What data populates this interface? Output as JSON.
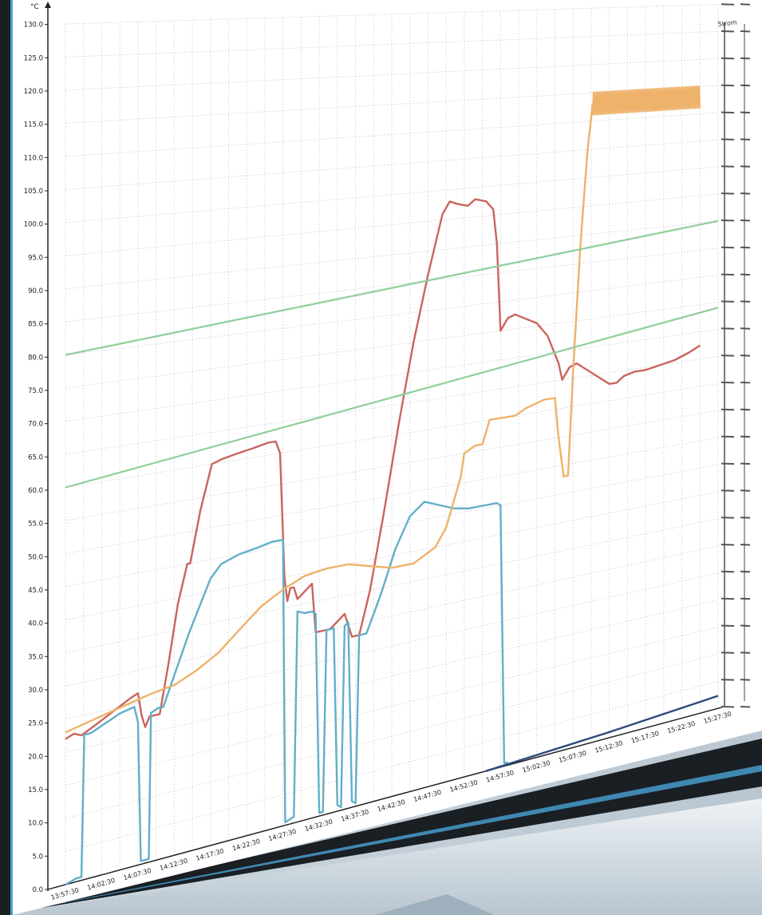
{
  "colors": {
    "background": "#cfd8e0",
    "screen": "#ffffff",
    "grid": "#d9dde2",
    "bezel": "#1a1f24",
    "bezel_highlight": "#4aa3d6",
    "monitor_body": "#dfe6ec",
    "axis": "#222222",
    "red_series": "#c9655c",
    "blue_series": "#63aeca",
    "orange_series": "#eeb26a",
    "green_lines": "#8fcf9a",
    "dark_series": "#2b4a7a"
  },
  "chart_data": {
    "type": "line",
    "ylabel": "°C",
    "right_axis_label": "Strom",
    "ylim": [
      0,
      130
    ],
    "y_ticks": [
      "0.0",
      "5.0",
      "10.0",
      "15.0",
      "20.0",
      "25.0",
      "30.0",
      "35.0",
      "40.0",
      "45.0",
      "50.0",
      "55.0",
      "60.0",
      "65.0",
      "70.0",
      "75.0",
      "80.0",
      "85.0",
      "90.0",
      "95.0",
      "100.0",
      "105.0",
      "110.0",
      "115.0",
      "120.0",
      "125.0",
      "130.0"
    ],
    "x_ticks": [
      "13:57:30",
      "14:02:30",
      "14:07:30",
      "14:12:30",
      "14:17:30",
      "14:22:30",
      "14:27:30",
      "14:32:30",
      "14:37:30",
      "14:42:30",
      "14:47:30",
      "14:52:30",
      "14:57:30",
      "15:02:30",
      "15:07:30",
      "15:12:30",
      "15:17:30",
      "15:22:30",
      "15:27:30"
    ],
    "x_range_minutes": [
      0,
      90
    ],
    "series": [
      {
        "color": "red",
        "points": [
          [
            0,
            22
          ],
          [
            1.2,
            22.5
          ],
          [
            2.2,
            22
          ],
          [
            4,
            23
          ],
          [
            6.5,
            24.5
          ],
          [
            9,
            26
          ],
          [
            10,
            26.5
          ],
          [
            10.5,
            23
          ],
          [
            11,
            21
          ],
          [
            11.6,
            22.5
          ],
          [
            13,
            22.5
          ],
          [
            14.2,
            30
          ],
          [
            15.5,
            39
          ],
          [
            16.8,
            45
          ],
          [
            17.2,
            45
          ],
          [
            18.6,
            53
          ],
          [
            20.2,
            60
          ],
          [
            21.5,
            60.5
          ],
          [
            23.5,
            61
          ],
          [
            26,
            61.5
          ],
          [
            28,
            62
          ],
          [
            29,
            62
          ],
          [
            29.6,
            60
          ],
          [
            30.2,
            40
          ],
          [
            30.6,
            36
          ],
          [
            31,
            38
          ],
          [
            31.5,
            38
          ],
          [
            32,
            36
          ],
          [
            33,
            37
          ],
          [
            34,
            38
          ],
          [
            34.5,
            30
          ],
          [
            35.5,
            30
          ],
          [
            36.5,
            30
          ],
          [
            37.5,
            31
          ],
          [
            38.5,
            32
          ],
          [
            39,
            30
          ],
          [
            39.5,
            28
          ],
          [
            40.5,
            28
          ],
          [
            42,
            35
          ],
          [
            44,
            48
          ],
          [
            46,
            62
          ],
          [
            48,
            75
          ],
          [
            50,
            86
          ],
          [
            52,
            96
          ],
          [
            53,
            98
          ],
          [
            54,
            97.5
          ],
          [
            55.5,
            97
          ],
          [
            56.5,
            98
          ],
          [
            58,
            97.5
          ],
          [
            59,
            96
          ],
          [
            59.5,
            90
          ],
          [
            60,
            75
          ],
          [
            61,
            77
          ],
          [
            62,
            77.5
          ],
          [
            63.5,
            76.5
          ],
          [
            65,
            75.5
          ],
          [
            66.5,
            73
          ],
          [
            68,
            68
          ],
          [
            68.5,
            65
          ],
          [
            69.5,
            67
          ],
          [
            70.5,
            67.5
          ],
          [
            71.5,
            66.5
          ],
          [
            73,
            65
          ],
          [
            74,
            64
          ],
          [
            75,
            63
          ],
          [
            76,
            63
          ],
          [
            77,
            64
          ],
          [
            78.5,
            64.5
          ],
          [
            80,
            64.5
          ],
          [
            82,
            65
          ],
          [
            84,
            65.5
          ],
          [
            86,
            66.5
          ],
          [
            87.5,
            67.5
          ]
        ]
      },
      {
        "color": "blue",
        "points": [
          [
            0,
            0
          ],
          [
            1.5,
            0.5
          ],
          [
            2.2,
            0.5
          ],
          [
            2.6,
            22
          ],
          [
            3.5,
            22
          ],
          [
            5.5,
            23
          ],
          [
            7.5,
            24
          ],
          [
            9.5,
            24.5
          ],
          [
            10,
            22
          ],
          [
            10.4,
            0.5
          ],
          [
            11,
            0.5
          ],
          [
            11.5,
            0.5
          ],
          [
            11.8,
            23
          ],
          [
            12.8,
            23.5
          ],
          [
            13.5,
            23.5
          ],
          [
            15,
            28
          ],
          [
            17,
            34
          ],
          [
            18.5,
            38
          ],
          [
            20,
            42
          ],
          [
            21.5,
            44
          ],
          [
            24,
            45
          ],
          [
            26.5,
            45.5
          ],
          [
            28.5,
            46
          ],
          [
            30,
            46
          ],
          [
            30.3,
            0.5
          ],
          [
            31.5,
            1
          ],
          [
            32,
            34
          ],
          [
            33,
            33.5
          ],
          [
            34,
            33.5
          ],
          [
            34.5,
            33
          ],
          [
            35,
            0.5
          ],
          [
            35.5,
            0.5
          ],
          [
            36,
            30
          ],
          [
            37,
            30
          ],
          [
            37.5,
            1
          ],
          [
            38,
            0.5
          ],
          [
            38.5,
            30
          ],
          [
            39,
            30.5
          ],
          [
            39.5,
            1
          ],
          [
            40,
            0.5
          ],
          [
            40.5,
            28
          ],
          [
            41.5,
            28
          ],
          [
            43.5,
            34
          ],
          [
            45.5,
            41
          ],
          [
            47.5,
            46
          ],
          [
            49.5,
            48
          ],
          [
            51.5,
            47
          ],
          [
            53.5,
            46
          ],
          [
            55.5,
            45.5
          ],
          [
            57.5,
            45.5
          ],
          [
            59.5,
            45.5
          ],
          [
            60,
            45
          ],
          [
            60.5,
            0.5
          ],
          [
            61,
            0.5
          ]
        ]
      },
      {
        "color": "orange",
        "points": [
          [
            0,
            23
          ],
          [
            4,
            24
          ],
          [
            8,
            25
          ],
          [
            12,
            26
          ],
          [
            15,
            26.5
          ],
          [
            18,
            28
          ],
          [
            21,
            30
          ],
          [
            24,
            33
          ],
          [
            27,
            36
          ],
          [
            30,
            38
          ],
          [
            33,
            39.5
          ],
          [
            36,
            40
          ],
          [
            39,
            40
          ],
          [
            42,
            39
          ],
          [
            45,
            38
          ],
          [
            48,
            38
          ],
          [
            51,
            40
          ],
          [
            52.5,
            43
          ],
          [
            53.5,
            47
          ],
          [
            54.5,
            51
          ],
          [
            55,
            55
          ],
          [
            56.5,
            56
          ],
          [
            57.5,
            56
          ],
          [
            58.5,
            60
          ],
          [
            60.5,
            60
          ],
          [
            62,
            60
          ],
          [
            63.5,
            61
          ],
          [
            66,
            62
          ],
          [
            67.5,
            62
          ],
          [
            68,
            55
          ],
          [
            68.7,
            48
          ],
          [
            69.3,
            48
          ],
          [
            70,
            66
          ],
          [
            71,
            88
          ],
          [
            72,
            105
          ],
          [
            72.7,
            113
          ],
          [
            73.5,
            113
          ],
          [
            75,
            113
          ],
          [
            77,
            113
          ],
          [
            80,
            113
          ],
          [
            83,
            113
          ],
          [
            85,
            113
          ],
          [
            86.5,
            113
          ],
          [
            87.5,
            113
          ]
        ]
      },
      {
        "color": "green",
        "points": [
          [
            0,
            80
          ],
          [
            90,
            90
          ]
        ]
      },
      {
        "color": "green",
        "points": [
          [
            0,
            60
          ],
          [
            90,
            74
          ]
        ]
      },
      {
        "color": "dark",
        "points": [
          [
            58,
            0
          ],
          [
            75,
            1
          ],
          [
            90,
            2.3
          ]
        ]
      }
    ]
  }
}
